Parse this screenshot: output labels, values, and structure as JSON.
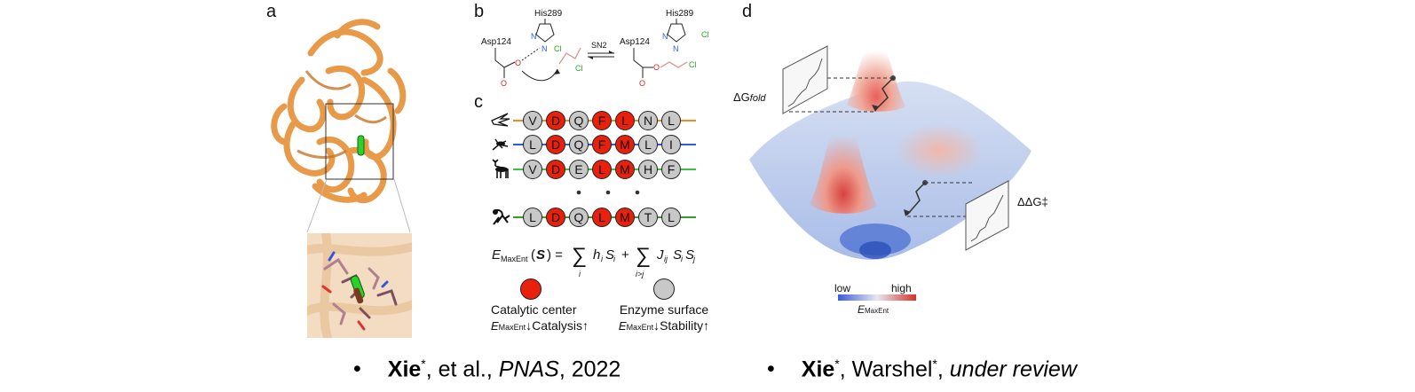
{
  "panels": {
    "a": "a",
    "b": "b",
    "c": "c",
    "d": "d"
  },
  "panel_b": {
    "his_label": "His289",
    "asp_label": "Asp124",
    "sn2_label": "SN2",
    "cl_ion": "Cl",
    "cl_atom": "Cl",
    "n_atom": "N",
    "o_atom": "O"
  },
  "panel_c": {
    "chains": [
      {
        "organism": "bird-silhouette-icon",
        "line_color": "#f28c1e",
        "residues": [
          "V",
          "D",
          "Q",
          "F",
          "L",
          "N",
          "L"
        ],
        "catalytic": [
          false,
          true,
          false,
          true,
          true,
          false,
          false
        ]
      },
      {
        "organism": "mosquito-silhouette-icon",
        "line_color": "#2b5fd9",
        "residues": [
          "L",
          "D",
          "Q",
          "F",
          "M",
          "L",
          "I"
        ],
        "catalytic": [
          false,
          true,
          false,
          true,
          true,
          false,
          false
        ]
      },
      {
        "organism": "deer-silhouette-icon",
        "line_color": "#3cc43c",
        "residues": [
          "V",
          "D",
          "E",
          "L",
          "M",
          "H",
          "F"
        ],
        "catalytic": [
          false,
          true,
          false,
          true,
          true,
          false,
          false
        ]
      },
      {
        "organism": "monkey-silhouette-icon",
        "line_color": "#3a9a2a",
        "residues": [
          "L",
          "D",
          "Q",
          "L",
          "M",
          "T",
          "L"
        ],
        "catalytic": [
          false,
          true,
          false,
          true,
          true,
          false,
          false
        ]
      }
    ],
    "equation": "E_MaxEnt(S) = Σ_i h_i S_i + Σ_{i>j} J_ij S_i S_j",
    "legend_catalytic": "Catalytic center",
    "legend_surface": "Enzyme surface",
    "emax_label": "E",
    "emax_sub": "MaxEnt",
    "catalysis_tail": "↓Catalysis↑",
    "stability_tail": "↓Stability↑",
    "colors": {
      "catalytic": "#e8200c",
      "surface": "#c8c8c8"
    }
  },
  "panel_d": {
    "dg_fold": "ΔG",
    "dg_fold_sub": "fold",
    "ddg": "ΔΔG‡",
    "colorbar_low": "low",
    "colorbar_high": "high",
    "colorbar_label": "E",
    "colorbar_sub": "MaxEnt"
  },
  "citations": [
    {
      "bullet": "•",
      "author": "Xie",
      "star": "*",
      "rest": ", et al., ",
      "journal": "PNAS",
      "year": ", 2022"
    },
    {
      "bullet": "•",
      "author": "Xie",
      "star": "*",
      "rest": ", Warshel",
      "star2": "*",
      "rest2": ", ",
      "status": "under review"
    }
  ]
}
